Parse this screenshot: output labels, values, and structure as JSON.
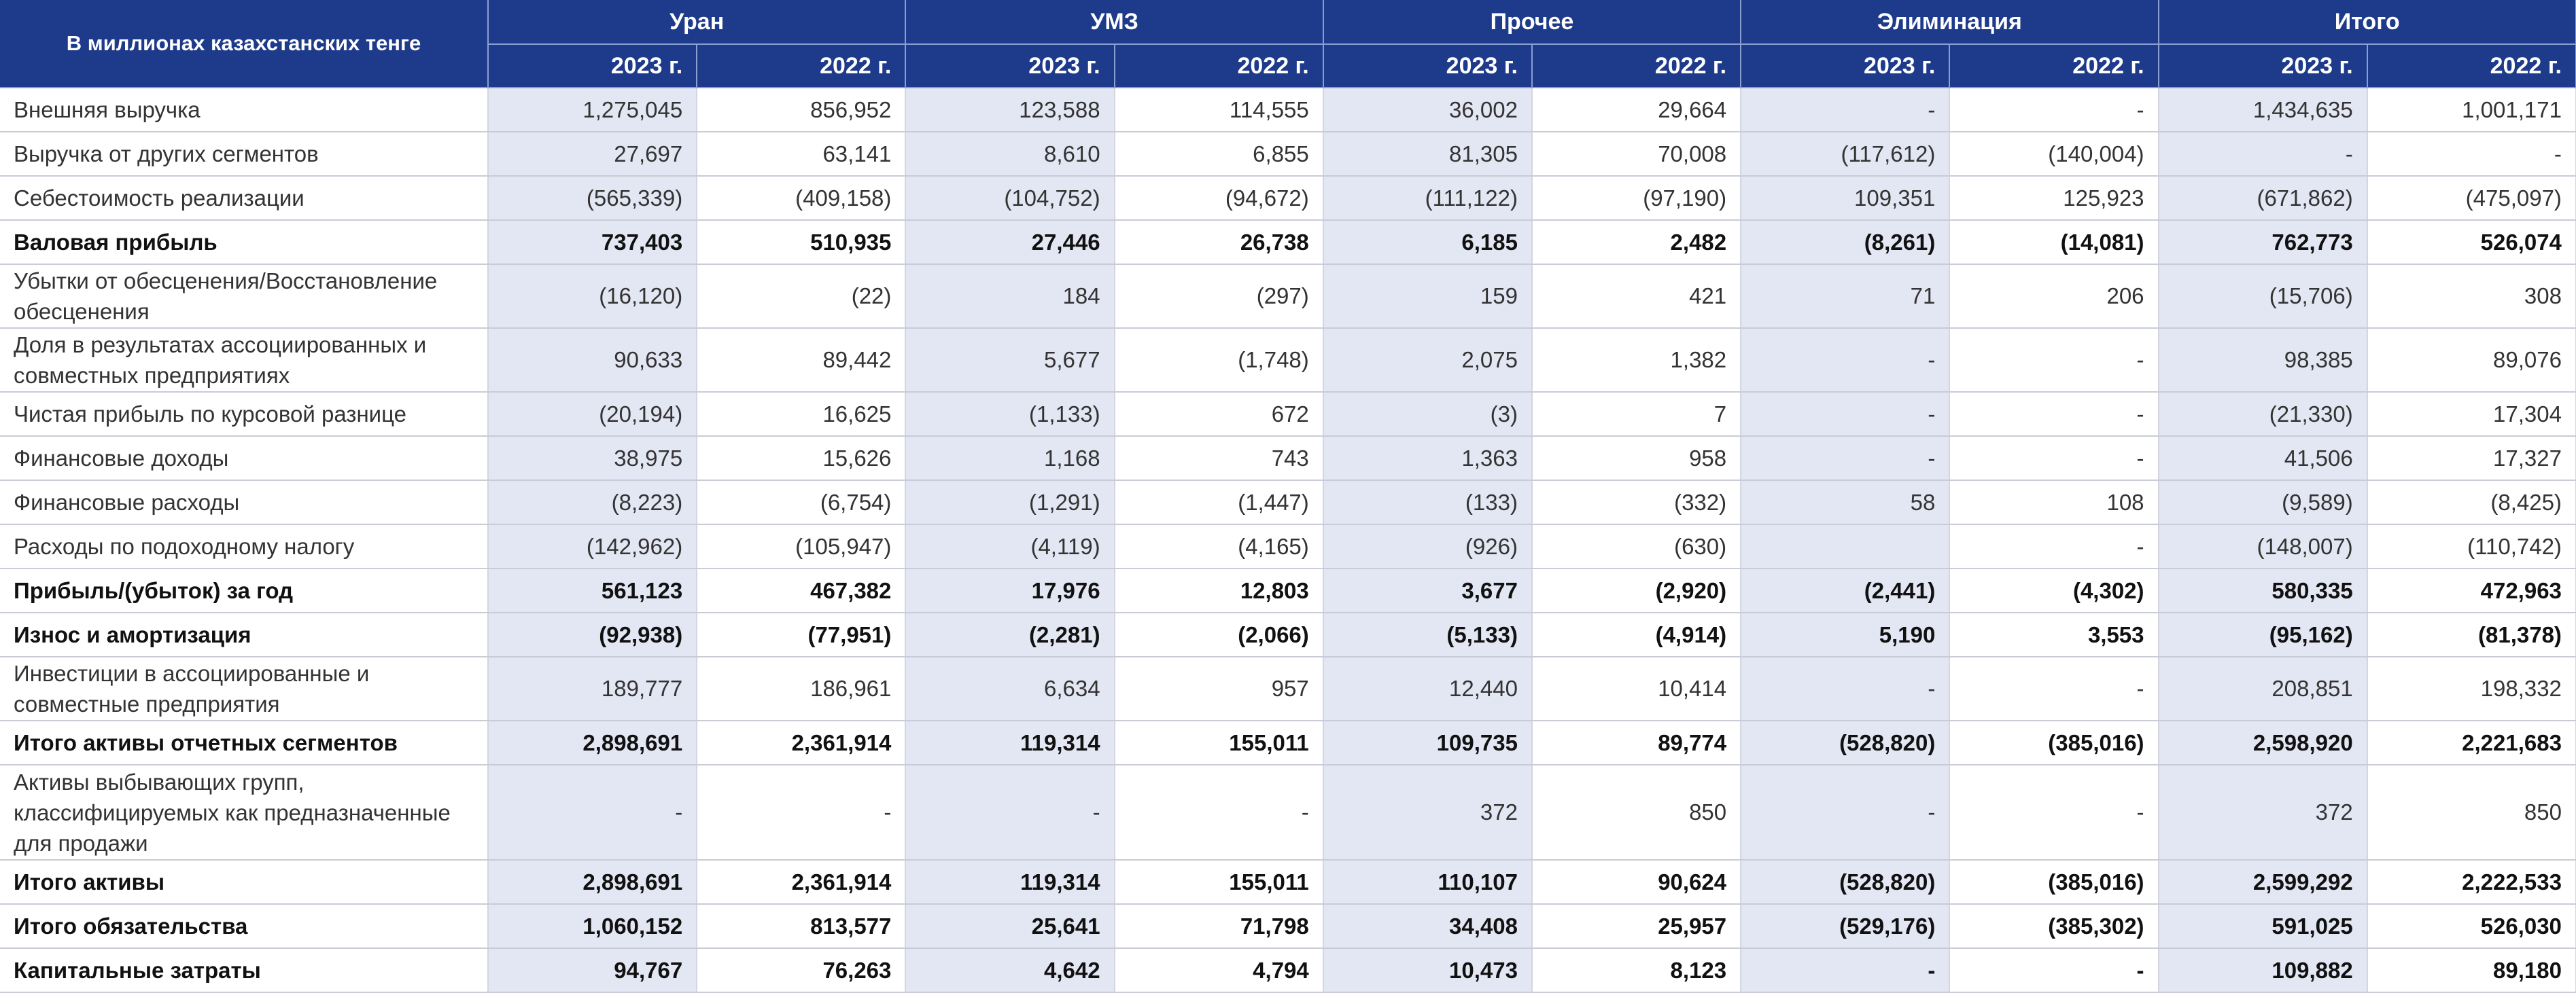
{
  "header": {
    "corner": "В миллионах казахстанских тенге",
    "groups": [
      "Уран",
      "УМЗ",
      "Прочее",
      "Элиминация",
      "Итого"
    ],
    "years": [
      "2023 г.",
      "2022 г."
    ]
  },
  "rows": [
    {
      "label": "Внешняя выручка",
      "bold": false,
      "lines": 1,
      "values": [
        "1,275,045",
        "856,952",
        "123,588",
        "114,555",
        "36,002",
        "29,664",
        "-",
        "-",
        "1,434,635",
        "1,001,171"
      ]
    },
    {
      "label": "Выручка от других сегментов",
      "bold": false,
      "lines": 1,
      "values": [
        "27,697",
        "63,141",
        "8,610",
        "6,855",
        "81,305",
        "70,008",
        "(117,612)",
        "(140,004)",
        "-",
        "-"
      ]
    },
    {
      "label": "Себестоимость реализации",
      "bold": false,
      "lines": 1,
      "values": [
        "(565,339)",
        "(409,158)",
        "(104,752)",
        "(94,672)",
        "(111,122)",
        "(97,190)",
        "109,351",
        "125,923",
        "(671,862)",
        "(475,097)"
      ]
    },
    {
      "label": "Валовая прибыль",
      "bold": true,
      "lines": 1,
      "values": [
        "737,403",
        "510,935",
        "27,446",
        "26,738",
        "6,185",
        "2,482",
        "(8,261)",
        "(14,081)",
        "762,773",
        "526,074"
      ]
    },
    {
      "label": "Убытки от обесценения/Восстановление обесценения",
      "bold": false,
      "lines": 2,
      "values": [
        "(16,120)",
        "(22)",
        "184",
        "(297)",
        "159",
        "421",
        "71",
        "206",
        "(15,706)",
        "308"
      ]
    },
    {
      "label": "Доля в результатах ассоциированных и совместных предприятиях",
      "bold": false,
      "lines": 2,
      "values": [
        "90,633",
        "89,442",
        "5,677",
        "(1,748)",
        "2,075",
        "1,382",
        "-",
        "-",
        "98,385",
        "89,076"
      ]
    },
    {
      "label": "Чистая прибыль по курсовой разнице",
      "bold": false,
      "lines": 1,
      "values": [
        "(20,194)",
        "16,625",
        "(1,133)",
        "672",
        "(3)",
        "7",
        "-",
        "-",
        "(21,330)",
        "17,304"
      ]
    },
    {
      "label": "Финансовые доходы",
      "bold": false,
      "lines": 1,
      "values": [
        "38,975",
        "15,626",
        "1,168",
        "743",
        "1,363",
        "958",
        "-",
        "-",
        "41,506",
        "17,327"
      ]
    },
    {
      "label": "Финансовые расходы",
      "bold": false,
      "lines": 1,
      "values": [
        "(8,223)",
        "(6,754)",
        "(1,291)",
        "(1,447)",
        "(133)",
        "(332)",
        "58",
        "108",
        "(9,589)",
        "(8,425)"
      ]
    },
    {
      "label": "Расходы по подоходному налогу",
      "bold": false,
      "lines": 1,
      "values": [
        "(142,962)",
        "(105,947)",
        "(4,119)",
        "(4,165)",
        "(926)",
        "(630)",
        "",
        "-",
        "(148,007)",
        "(110,742)"
      ]
    },
    {
      "label": "Прибыль/(убыток) за год",
      "bold": true,
      "lines": 1,
      "values": [
        "561,123",
        "467,382",
        "17,976",
        "12,803",
        "3,677",
        "(2,920)",
        "(2,441)",
        "(4,302)",
        "580,335",
        "472,963"
      ]
    },
    {
      "label": "Износ и амортизация",
      "bold": true,
      "lines": 1,
      "values": [
        "(92,938)",
        "(77,951)",
        "(2,281)",
        "(2,066)",
        "(5,133)",
        "(4,914)",
        "5,190",
        "3,553",
        "(95,162)",
        "(81,378)"
      ]
    },
    {
      "label": "Инвестиции в ассоциированные и совместные предприятия",
      "bold": false,
      "lines": 2,
      "values": [
        "189,777",
        "186,961",
        "6,634",
        "957",
        "12,440",
        "10,414",
        "-",
        "-",
        "208,851",
        "198,332"
      ]
    },
    {
      "label": "Итого активы отчетных сегментов",
      "bold": true,
      "lines": 1,
      "values": [
        "2,898,691",
        "2,361,914",
        "119,314",
        "155,011",
        "109,735",
        "89,774",
        "(528,820)",
        "(385,016)",
        "2,598,920",
        "2,221,683"
      ]
    },
    {
      "label": "Активы выбывающих групп, классифицируемых как предназначенные для продажи",
      "bold": false,
      "lines": 3,
      "values": [
        "-",
        "-",
        "-",
        "-",
        "372",
        "850",
        "-",
        "-",
        "372",
        "850"
      ]
    },
    {
      "label": "Итого активы",
      "bold": true,
      "lines": 1,
      "values": [
        "2,898,691",
        "2,361,914",
        "119,314",
        "155,011",
        "110,107",
        "90,624",
        "(528,820)",
        "(385,016)",
        "2,599,292",
        "2,222,533"
      ]
    },
    {
      "label": "Итого обязательства",
      "bold": true,
      "lines": 1,
      "values": [
        "1,060,152",
        "813,577",
        "25,641",
        "71,798",
        "34,408",
        "25,957",
        "(529,176)",
        "(385,302)",
        "591,025",
        "526,030"
      ]
    },
    {
      "label": "Капитальные затраты",
      "bold": true,
      "lines": 1,
      "values": [
        "94,767",
        "76,263",
        "4,642",
        "4,794",
        "10,473",
        "8,123",
        "-",
        "-",
        "109,882",
        "89,180"
      ]
    }
  ]
}
